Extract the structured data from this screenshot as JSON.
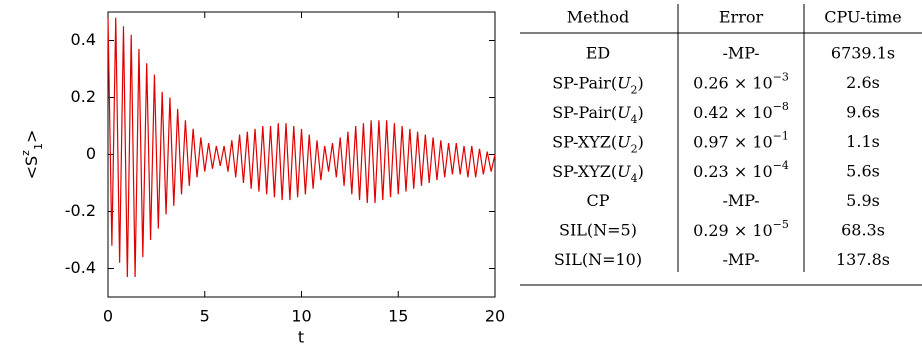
{
  "chart_data": {
    "type": "line",
    "xlabel": "t",
    "ylabel": [
      {
        "t": "<S"
      },
      {
        "t": "z",
        "sup": true
      },
      {
        "t": "1",
        "sub": true
      },
      {
        "t": ">"
      }
    ],
    "x": [
      0,
      0.2,
      0.4,
      0.6,
      0.8,
      1,
      1.2,
      1.4,
      1.6,
      1.8,
      2,
      2.2,
      2.4,
      2.6,
      2.8,
      3,
      3.2,
      3.4,
      3.6,
      3.8,
      4,
      4.2,
      4.4,
      4.6,
      4.8,
      5,
      5.2,
      5.4,
      5.6,
      5.8,
      6,
      6.2,
      6.4,
      6.6,
      6.8,
      7,
      7.2,
      7.4,
      7.6,
      7.8,
      8,
      8.2,
      8.4,
      8.6,
      8.8,
      9,
      9.2,
      9.4,
      9.6,
      9.8,
      10,
      10.2,
      10.4,
      10.6,
      10.8,
      11,
      11.2,
      11.4,
      11.6,
      11.8,
      12,
      12.2,
      12.4,
      12.6,
      12.8,
      13,
      13.2,
      13.4,
      13.6,
      13.8,
      14,
      14.2,
      14.4,
      14.6,
      14.8,
      15,
      15.2,
      15.4,
      15.6,
      15.8,
      16,
      16.2,
      16.4,
      16.6,
      16.8,
      17,
      17.2,
      17.4,
      17.6,
      17.8,
      18,
      18.2,
      18.4,
      18.6,
      18.8,
      19,
      19.2,
      19.4,
      19.6,
      19.8,
      20
    ],
    "series": [
      {
        "color": "#e00000",
        "values": [
          0.48,
          -0.32,
          0.48,
          -0.38,
          0.45,
          -0.43,
          0.42,
          -0.43,
          0.37,
          -0.36,
          0.32,
          -0.3,
          0.28,
          -0.26,
          0.22,
          -0.21,
          0.2,
          -0.18,
          0.16,
          -0.14,
          0.12,
          -0.11,
          0.09,
          -0.08,
          0.06,
          -0.06,
          0.04,
          -0.05,
          0.03,
          -0.04,
          0.03,
          -0.06,
          0.05,
          -0.08,
          0.07,
          -0.1,
          0.08,
          -0.12,
          0.09,
          -0.13,
          0.1,
          -0.14,
          0.1,
          -0.15,
          0.11,
          -0.16,
          0.11,
          -0.16,
          0.1,
          -0.15,
          0.09,
          -0.14,
          0.07,
          -0.12,
          0.05,
          -0.09,
          0.03,
          -0.06,
          0.04,
          -0.08,
          0.06,
          -0.11,
          0.08,
          -0.14,
          0.1,
          -0.16,
          0.11,
          -0.17,
          0.12,
          -0.17,
          0.12,
          -0.16,
          0.12,
          -0.15,
          0.11,
          -0.14,
          0.1,
          -0.13,
          0.09,
          -0.12,
          0.08,
          -0.11,
          0.07,
          -0.1,
          0.06,
          -0.09,
          0.05,
          -0.08,
          0.04,
          -0.07,
          0.04,
          -0.07,
          0.03,
          -0.08,
          0.03,
          -0.08,
          0.02,
          -0.07,
          0.01,
          -0.06,
          0
        ]
      }
    ],
    "xlim": [
      0,
      20
    ],
    "xticks": [
      0,
      5,
      10,
      15,
      20
    ],
    "ylim": [
      -0.5,
      0.5
    ],
    "yticks": [
      -0.4,
      -0.2,
      0,
      0.2,
      0.4
    ]
  },
  "table": {
    "header": [
      "Method",
      "Error",
      "CPU-time"
    ],
    "rows": [
      [
        "ED",
        "-MP-",
        "6739.1s"
      ],
      [
        [
          {
            "t": "SP-Pair("
          },
          {
            "t": "U",
            "i": true
          },
          {
            "t": "2",
            "sub": true
          },
          {
            "t": ")"
          }
        ],
        [
          {
            "t": "0.26 × 10"
          },
          {
            "t": "−3",
            "sup": true
          }
        ],
        "2.6s"
      ],
      [
        [
          {
            "t": "SP-Pair("
          },
          {
            "t": "U",
            "i": true
          },
          {
            "t": "4",
            "sub": true
          },
          {
            "t": ")"
          }
        ],
        [
          {
            "t": "0.42 × 10"
          },
          {
            "t": "−8",
            "sup": true
          }
        ],
        "9.6s"
      ],
      [
        [
          {
            "t": "SP-XYZ("
          },
          {
            "t": "U",
            "i": true
          },
          {
            "t": "2",
            "sub": true
          },
          {
            "t": ")"
          }
        ],
        [
          {
            "t": "0.97 × 10"
          },
          {
            "t": "−1",
            "sup": true
          }
        ],
        "1.1s"
      ],
      [
        [
          {
            "t": "SP-XYZ("
          },
          {
            "t": "U",
            "i": true
          },
          {
            "t": "4",
            "sub": true
          },
          {
            "t": ")"
          }
        ],
        [
          {
            "t": "0.23 × 10"
          },
          {
            "t": "−4",
            "sup": true
          }
        ],
        "5.6s"
      ],
      [
        "CP",
        "-MP-",
        "5.9s"
      ],
      [
        "SIL(N=5)",
        [
          {
            "t": "0.29 × 10"
          },
          {
            "t": "−5",
            "sup": true
          }
        ],
        "68.3s"
      ],
      [
        "SIL(N=10)",
        "-MP-",
        "137.8s"
      ]
    ]
  }
}
